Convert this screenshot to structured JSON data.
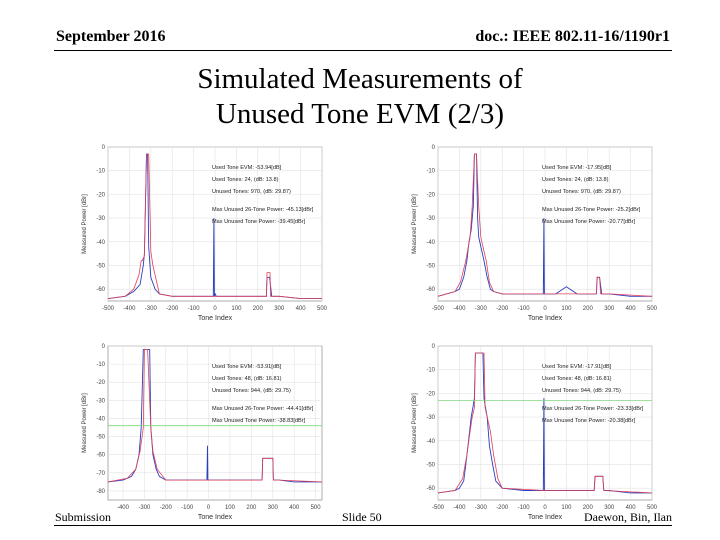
{
  "header": {
    "date": "September 2016",
    "doc": "doc.: IEEE 802.11-16/1190r1"
  },
  "title": {
    "line1": "Simulated Measurements of",
    "line2": "Unused Tone EVM (2/3)"
  },
  "footer": {
    "left": "Submission",
    "center": "Slide 50",
    "right": "Daewon, Bin, Ilan"
  },
  "colors": {
    "trace": "#2a3fbf",
    "mask": "#e0405a",
    "limit": "#7ed67e",
    "grid": "#e2e2e2"
  },
  "charts": [
    {
      "xlabel": "Tone Index",
      "ylabel": "Measured Power [dBr]",
      "xticks": [
        "-500",
        "-400",
        "-300",
        "-200",
        "-100",
        "0",
        "100",
        "200",
        "300",
        "400",
        "500"
      ],
      "yticks": [
        "0",
        "-10",
        "-20",
        "-30",
        "-40",
        "-50",
        "-60"
      ],
      "annotations": [
        "Used Tone EVM: -53.94[dB]",
        "Used Tones: 24, (dB: 13.8)",
        "Unused Tones: 970, (dB: 29.87)",
        "Max Unused 26-Tone Power: -45.13[dBr]",
        "Max Unused Tone Power: -39.45[dBr]"
      ]
    },
    {
      "xlabel": "Tone Index",
      "ylabel": "Measured Power [dBr]",
      "xticks": [
        "-500",
        "-400",
        "-300",
        "-200",
        "-100",
        "0",
        "100",
        "200",
        "300",
        "400",
        "500"
      ],
      "yticks": [
        "0",
        "-10",
        "-20",
        "-30",
        "-40",
        "-50",
        "-60"
      ],
      "annotations": [
        "Used Tone EVM: -17.95[dB]",
        "Used Tones: 24, (dB: 13.8)",
        "Unused Tones: 970, (dB: 29.87)",
        "Max Unused 26-Tone Power: -25.2[dBr]",
        "Max Unused Tone Power: -20.77[dBr]"
      ]
    },
    {
      "xlabel": "Tone Index",
      "ylabel": "Measured Power [dBr]",
      "xticks": [
        "-400",
        "-300",
        "-200",
        "-100",
        "0",
        "100",
        "200",
        "300",
        "400",
        "500"
      ],
      "yticks": [
        "0",
        "-10",
        "-20",
        "-30",
        "-40",
        "-50",
        "-60",
        "-70",
        "-80"
      ],
      "annotations": [
        "Used Tone EVM: -53.91[dB]",
        "Used Tones: 48, (dB: 16.81)",
        "Unused Tones: 944, (dB: 29.75)",
        "Max Unused 26-Tone Power: -44.41[dBr]",
        "Max Unused Tone Power: -38.83[dBr]"
      ]
    },
    {
      "xlabel": "Tone Index",
      "ylabel": "Measured Power [dBr]",
      "xticks": [
        "-500",
        "-400",
        "-300",
        "-200",
        "-100",
        "0",
        "100",
        "200",
        "300",
        "400",
        "500"
      ],
      "yticks": [
        "0",
        "-10",
        "-20",
        "-30",
        "-40",
        "-50",
        "-60"
      ],
      "annotations": [
        "Used Tone EVM: -17.91[dB]",
        "Used Tones: 48, (dB: 16.81)",
        "Unused Tones: 944, (dB: 29.75)",
        "Max Unused 26-Tone Power: -23.33[dBr]",
        "Max Unused Tone Power: -20.38[dBr]"
      ]
    }
  ],
  "chart_data": [
    {
      "type": "line",
      "xlabel": "Tone Index",
      "ylabel": "Measured Power [dBr]",
      "xlim": [
        -500,
        500
      ],
      "ylim": [
        -65,
        0
      ],
      "grid": true,
      "series": [
        {
          "style": "trace",
          "x": [
            -500,
            -420,
            -380,
            -350,
            -335,
            -330,
            -320,
            -315,
            -310,
            -300,
            -280,
            -260,
            -200,
            -100,
            -8,
            -5,
            -3,
            0,
            2,
            5,
            50,
            150,
            240,
            243,
            245,
            255,
            265,
            270,
            280,
            300,
            400,
            500
          ],
          "y": [
            -64,
            -63,
            -61,
            -58,
            -50,
            -45,
            -3,
            -3,
            -42,
            -55,
            -60,
            -62,
            -63,
            -63,
            -63,
            -30,
            -63,
            -62,
            -62,
            -63,
            -63,
            -63,
            -63,
            -55,
            -55,
            -55,
            -63,
            -63,
            -63,
            -63,
            -64,
            -64
          ]
        },
        {
          "style": "mask",
          "x": [
            -500,
            -420,
            -380,
            -355,
            -345,
            -340,
            -330,
            -320,
            -310,
            -300,
            -290,
            -270,
            -260,
            -200,
            -100,
            0,
            100,
            240,
            243,
            245,
            257,
            260,
            270,
            300,
            400,
            500
          ],
          "y": [
            -64,
            -63,
            -60,
            -54,
            -48,
            -48,
            -46,
            -3,
            -3,
            -44,
            -50,
            -58,
            -62,
            -63,
            -63,
            -63,
            -63,
            -63,
            -53,
            -53,
            -53,
            -63,
            -63,
            -63,
            -64,
            -64
          ]
        }
      ]
    },
    {
      "type": "line",
      "xlabel": "Tone Index",
      "ylabel": "Measured Power [dBr]",
      "xlim": [
        -500,
        500
      ],
      "ylim": [
        -65,
        0
      ],
      "grid": true,
      "series": [
        {
          "style": "trace",
          "x": [
            -500,
            -420,
            -400,
            -380,
            -365,
            -355,
            -345,
            -335,
            -330,
            -320,
            -315,
            -310,
            -300,
            -285,
            -270,
            -255,
            -240,
            -200,
            -100,
            -8,
            -5,
            -3,
            50,
            100,
            150,
            200,
            240,
            243,
            245,
            255,
            265,
            270,
            300,
            400,
            500
          ],
          "y": [
            -63,
            -61,
            -60,
            -55,
            -48,
            -40,
            -35,
            -25,
            -3,
            -3,
            -30,
            -38,
            -42,
            -48,
            -55,
            -60,
            -61,
            -62,
            -62,
            -62,
            -30,
            -62,
            -62,
            -59,
            -62,
            -62,
            -62,
            -56,
            -55,
            -55,
            -62,
            -62,
            -62,
            -63,
            -63
          ]
        },
        {
          "style": "mask",
          "x": [
            -500,
            -420,
            -395,
            -370,
            -350,
            -340,
            -330,
            -320,
            -310,
            -300,
            -290,
            -275,
            -260,
            -240,
            -200,
            0,
            240,
            243,
            255,
            260,
            300,
            500
          ],
          "y": [
            -63,
            -61,
            -57,
            -48,
            -38,
            -25,
            -3,
            -3,
            -25,
            -38,
            -42,
            -48,
            -57,
            -61,
            -62,
            -62,
            -62,
            -55,
            -55,
            -62,
            -62,
            -63
          ]
        }
      ]
    },
    {
      "type": "line",
      "xlabel": "Tone Index",
      "ylabel": "Measured Power [dBr]",
      "xlim": [
        -470,
        530
      ],
      "ylim": [
        -85,
        0
      ],
      "grid": true,
      "series": [
        {
          "style": "trace",
          "x": [
            -470,
            -400,
            -360,
            -340,
            -325,
            -315,
            -305,
            -300,
            -285,
            -275,
            -270,
            -260,
            -245,
            -230,
            -200,
            -100,
            -8,
            -5,
            -3,
            0,
            100,
            200,
            250,
            253,
            255,
            300,
            303,
            310,
            330,
            400,
            530
          ],
          "y": [
            -75,
            -74,
            -72,
            -68,
            -60,
            -45,
            -2,
            -2,
            -2,
            -2,
            -45,
            -60,
            -68,
            -72,
            -74,
            -74,
            -74,
            -55,
            -74,
            -74,
            -74,
            -74,
            -74,
            -62,
            -62,
            -62,
            -74,
            -74,
            -74,
            -75,
            -75
          ]
        },
        {
          "style": "mask",
          "x": [
            -470,
            -380,
            -340,
            -320,
            -305,
            -300,
            -285,
            -270,
            -260,
            -240,
            -200,
            0,
            250,
            253,
            255,
            300,
            303,
            330,
            530
          ],
          "y": [
            -75,
            -73,
            -68,
            -58,
            -45,
            -2,
            -2,
            -45,
            -58,
            -68,
            -74,
            -74,
            -74,
            -62,
            -62,
            -62,
            -74,
            -74,
            -75
          ]
        },
        {
          "style": "limit",
          "x": [
            -470,
            530
          ],
          "y": [
            -44,
            -44
          ]
        }
      ]
    },
    {
      "type": "line",
      "xlabel": "Tone Index",
      "ylabel": "Measured Power [dBr]",
      "xlim": [
        -500,
        500
      ],
      "ylim": [
        -65,
        0
      ],
      "grid": true,
      "series": [
        {
          "style": "trace",
          "x": [
            -500,
            -420,
            -400,
            -380,
            -370,
            -360,
            -345,
            -335,
            -330,
            -325,
            -320,
            -310,
            -300,
            -290,
            -285,
            -280,
            -270,
            -260,
            -245,
            -230,
            -200,
            -100,
            -8,
            -5,
            -3,
            100,
            200,
            230,
            233,
            235,
            270,
            275,
            300,
            400,
            500
          ],
          "y": [
            -62,
            -61,
            -60,
            -57,
            -50,
            -42,
            -30,
            -25,
            -22,
            -3,
            -3,
            -3,
            -3,
            -3,
            -22,
            -25,
            -30,
            -42,
            -50,
            -57,
            -60,
            -61,
            -61,
            -22,
            -61,
            -61,
            -61,
            -61,
            -56,
            -55,
            -55,
            -61,
            -61,
            -62,
            -62
          ]
        },
        {
          "style": "mask",
          "x": [
            -500,
            -420,
            -385,
            -365,
            -350,
            -340,
            -330,
            -325,
            -285,
            -280,
            -270,
            -255,
            -240,
            -220,
            -200,
            0,
            230,
            233,
            270,
            275,
            500
          ],
          "y": [
            -62,
            -61,
            -56,
            -46,
            -36,
            -30,
            -26,
            -3,
            -3,
            -26,
            -30,
            -36,
            -46,
            -56,
            -60,
            -61,
            -61,
            -55,
            -55,
            -61,
            -62
          ]
        },
        {
          "style": "limit",
          "x": [
            -500,
            500
          ],
          "y": [
            -23,
            -23
          ]
        }
      ]
    }
  ]
}
